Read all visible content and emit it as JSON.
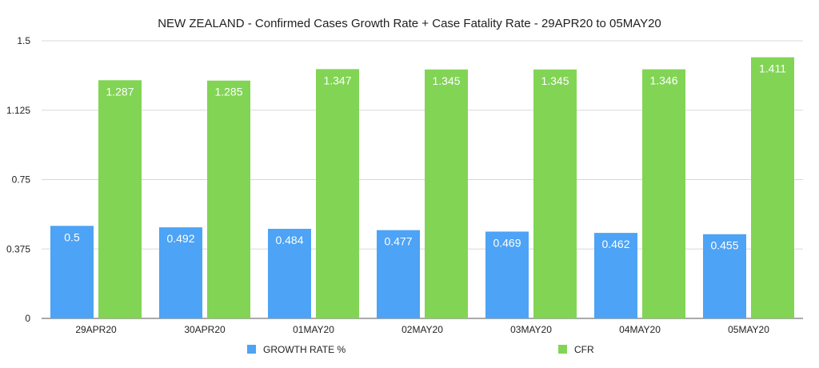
{
  "chart_data": {
    "type": "bar",
    "title": "NEW ZEALAND - Confirmed Cases Growth Rate + Case Fatality Rate - 29APR20 to 05MAY20",
    "categories": [
      "29APR20",
      "30APR20",
      "01MAY20",
      "02MAY20",
      "03MAY20",
      "04MAY20",
      "05MAY20"
    ],
    "series": [
      {
        "name": "GROWTH RATE %",
        "color": "#4da3f5",
        "values": [
          0.5,
          0.492,
          0.484,
          0.477,
          0.469,
          0.462,
          0.455
        ],
        "labels": [
          "0.5",
          "0.492",
          "0.484",
          "0.477",
          "0.469",
          "0.462",
          "0.455"
        ]
      },
      {
        "name": "CFR",
        "color": "#82d455",
        "values": [
          1.287,
          1.285,
          1.347,
          1.345,
          1.345,
          1.346,
          1.411
        ],
        "labels": [
          "1.287",
          "1.285",
          "1.347",
          "1.345",
          "1.345",
          "1.346",
          "1.411"
        ]
      }
    ],
    "xlabel": "",
    "ylabel": "",
    "ylim": [
      0,
      1.5
    ],
    "yticks": [
      0,
      0.375,
      0.75,
      1.125,
      1.5
    ],
    "ytick_labels": [
      "0",
      "0.375",
      "0.75",
      "1.125",
      "1.5"
    ],
    "grid": true,
    "legend_position": "bottom"
  }
}
